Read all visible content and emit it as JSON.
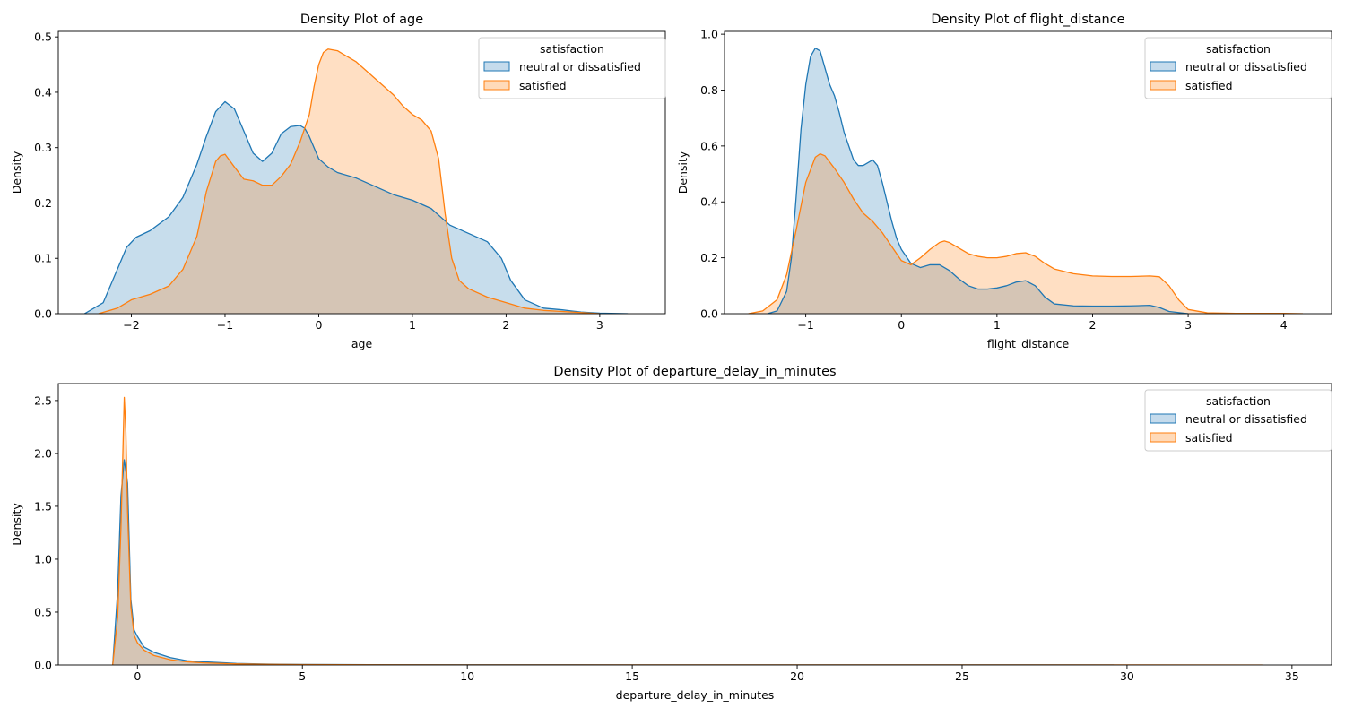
{
  "colors": {
    "series_line": [
      "#1f77b4",
      "#ff7f0e"
    ],
    "series_fill": [
      "#c5dbec",
      "#ffdab9"
    ],
    "overlap_fill": "#c4c4bd",
    "axes": "#000000",
    "background": "#ffffff"
  },
  "chart_data": [
    {
      "type": "area",
      "title": "Density Plot of age",
      "xlabel": "age",
      "ylabel": "Density",
      "xlim": [
        -2.78,
        3.7
      ],
      "ylim": [
        0,
        0.51
      ],
      "xticks": [
        -2,
        -1,
        0,
        1,
        2,
        3
      ],
      "xtick_labels": [
        "−2",
        "−1",
        "0",
        "1",
        "2",
        "3"
      ],
      "yticks": [
        0,
        0.1,
        0.2,
        0.3,
        0.4,
        0.5
      ],
      "ytick_labels": [
        "0.0",
        "0.1",
        "0.2",
        "0.3",
        "0.4",
        "0.5"
      ],
      "legend": {
        "title": "satisfaction",
        "location": "upper right"
      },
      "series": [
        {
          "name": "neutral or dissatisfied",
          "x": [
            -2.5,
            -2.3,
            -2.15,
            -2.05,
            -1.95,
            -1.8,
            -1.6,
            -1.45,
            -1.3,
            -1.2,
            -1.1,
            -1.0,
            -0.9,
            -0.8,
            -0.7,
            -0.6,
            -0.5,
            -0.4,
            -0.3,
            -0.2,
            -0.15,
            -0.1,
            -0.05,
            0.0,
            0.1,
            0.2,
            0.4,
            0.6,
            0.8,
            1.0,
            1.2,
            1.4,
            1.6,
            1.8,
            1.95,
            2.05,
            2.2,
            2.4,
            2.6,
            2.8,
            3.0,
            3.3
          ],
          "y": [
            0.0,
            0.02,
            0.08,
            0.12,
            0.138,
            0.15,
            0.175,
            0.21,
            0.27,
            0.32,
            0.365,
            0.383,
            0.37,
            0.33,
            0.29,
            0.275,
            0.29,
            0.325,
            0.338,
            0.34,
            0.335,
            0.32,
            0.3,
            0.28,
            0.265,
            0.255,
            0.245,
            0.23,
            0.215,
            0.205,
            0.19,
            0.16,
            0.145,
            0.13,
            0.1,
            0.06,
            0.025,
            0.01,
            0.007,
            0.003,
            0.001,
            0.0
          ]
        },
        {
          "name": "satisfied",
          "x": [
            -2.35,
            -2.15,
            -2.0,
            -1.8,
            -1.6,
            -1.45,
            -1.3,
            -1.2,
            -1.1,
            -1.05,
            -1.0,
            -0.9,
            -0.8,
            -0.7,
            -0.6,
            -0.5,
            -0.4,
            -0.3,
            -0.2,
            -0.1,
            -0.05,
            0.0,
            0.05,
            0.1,
            0.2,
            0.3,
            0.4,
            0.5,
            0.6,
            0.7,
            0.8,
            0.9,
            1.0,
            1.1,
            1.2,
            1.28,
            1.35,
            1.42,
            1.5,
            1.6,
            1.8,
            2.0,
            2.2,
            2.4,
            2.6,
            2.8,
            3.0
          ],
          "y": [
            0.0,
            0.01,
            0.025,
            0.035,
            0.05,
            0.08,
            0.14,
            0.22,
            0.275,
            0.285,
            0.288,
            0.265,
            0.243,
            0.24,
            0.232,
            0.232,
            0.248,
            0.27,
            0.31,
            0.36,
            0.41,
            0.45,
            0.472,
            0.478,
            0.475,
            0.465,
            0.455,
            0.44,
            0.425,
            0.41,
            0.395,
            0.375,
            0.36,
            0.35,
            0.33,
            0.28,
            0.18,
            0.1,
            0.06,
            0.045,
            0.03,
            0.02,
            0.01,
            0.006,
            0.004,
            0.002,
            0.0
          ]
        }
      ]
    },
    {
      "type": "area",
      "title": "Density Plot of flight_distance",
      "xlabel": "flight_distance",
      "ylabel": "Density",
      "xlim": [
        -1.85,
        4.5
      ],
      "ylim": [
        0,
        1.01
      ],
      "xticks": [
        -1,
        0,
        1,
        2,
        3,
        4
      ],
      "xtick_labels": [
        "−1",
        "0",
        "1",
        "2",
        "3",
        "4"
      ],
      "yticks": [
        0,
        0.2,
        0.4,
        0.6,
        0.8,
        1.0
      ],
      "ytick_labels": [
        "0.0",
        "0.2",
        "0.4",
        "0.6",
        "0.8",
        "1.0"
      ],
      "legend": {
        "title": "satisfaction",
        "location": "upper right"
      },
      "series": [
        {
          "name": "neutral or dissatisfied",
          "x": [
            -1.4,
            -1.3,
            -1.2,
            -1.15,
            -1.1,
            -1.05,
            -1.0,
            -0.95,
            -0.9,
            -0.85,
            -0.8,
            -0.75,
            -0.7,
            -0.65,
            -0.6,
            -0.55,
            -0.5,
            -0.45,
            -0.4,
            -0.3,
            -0.25,
            -0.2,
            -0.15,
            -0.1,
            -0.05,
            0.0,
            0.1,
            0.2,
            0.3,
            0.4,
            0.5,
            0.6,
            0.7,
            0.8,
            0.9,
            1.0,
            1.1,
            1.2,
            1.3,
            1.4,
            1.5,
            1.6,
            1.8,
            2.0,
            2.2,
            2.4,
            2.6,
            2.7,
            2.8,
            3.0
          ],
          "y": [
            0.0,
            0.01,
            0.08,
            0.2,
            0.42,
            0.66,
            0.82,
            0.92,
            0.95,
            0.94,
            0.88,
            0.82,
            0.78,
            0.72,
            0.65,
            0.6,
            0.55,
            0.53,
            0.53,
            0.55,
            0.53,
            0.47,
            0.4,
            0.33,
            0.27,
            0.23,
            0.18,
            0.165,
            0.175,
            0.175,
            0.155,
            0.125,
            0.1,
            0.088,
            0.088,
            0.092,
            0.1,
            0.113,
            0.118,
            0.1,
            0.06,
            0.035,
            0.028,
            0.027,
            0.027,
            0.028,
            0.03,
            0.022,
            0.008,
            0.0
          ]
        },
        {
          "name": "satisfied",
          "x": [
            -1.6,
            -1.45,
            -1.3,
            -1.2,
            -1.1,
            -1.0,
            -0.9,
            -0.85,
            -0.8,
            -0.7,
            -0.6,
            -0.5,
            -0.4,
            -0.3,
            -0.2,
            -0.1,
            0.0,
            0.1,
            0.2,
            0.3,
            0.4,
            0.45,
            0.5,
            0.6,
            0.7,
            0.8,
            0.9,
            1.0,
            1.1,
            1.2,
            1.3,
            1.4,
            1.5,
            1.6,
            1.8,
            2.0,
            2.2,
            2.4,
            2.6,
            2.7,
            2.8,
            2.9,
            3.0,
            3.2,
            3.5,
            4.0,
            4.2
          ],
          "y": [
            0.0,
            0.01,
            0.05,
            0.14,
            0.3,
            0.47,
            0.56,
            0.572,
            0.565,
            0.52,
            0.47,
            0.41,
            0.36,
            0.33,
            0.29,
            0.24,
            0.19,
            0.175,
            0.2,
            0.23,
            0.255,
            0.26,
            0.255,
            0.235,
            0.215,
            0.205,
            0.2,
            0.2,
            0.205,
            0.215,
            0.218,
            0.205,
            0.18,
            0.16,
            0.143,
            0.135,
            0.133,
            0.133,
            0.135,
            0.132,
            0.1,
            0.05,
            0.015,
            0.003,
            0.001,
            0.001,
            0.0
          ]
        }
      ]
    },
    {
      "type": "area",
      "title": "Density Plot of departure_delay_in_minutes",
      "xlabel": "departure_delay_in_minutes",
      "ylabel": "Density",
      "xlim": [
        -2.4,
        36.2
      ],
      "ylim": [
        0,
        2.66
      ],
      "xticks": [
        0,
        5,
        10,
        15,
        20,
        25,
        30,
        35
      ],
      "xtick_labels": [
        "0",
        "5",
        "10",
        "15",
        "20",
        "25",
        "30",
        "35"
      ],
      "yticks": [
        0,
        0.5,
        1.0,
        1.5,
        2.0,
        2.5
      ],
      "ytick_labels": [
        "0.0",
        "0.5",
        "1.0",
        "1.5",
        "2.0",
        "2.5"
      ],
      "legend": {
        "title": "satisfaction",
        "location": "upper right"
      },
      "series": [
        {
          "name": "neutral or dissatisfied",
          "x": [
            -0.75,
            -0.6,
            -0.5,
            -0.4,
            -0.3,
            -0.2,
            -0.1,
            0.0,
            0.2,
            0.5,
            1.0,
            1.5,
            2.0,
            3.0,
            4.0,
            5.0,
            7.0,
            10.0,
            15.0,
            20.0,
            25.0,
            29.6
          ],
          "y": [
            0.0,
            0.7,
            1.6,
            1.94,
            1.72,
            0.62,
            0.33,
            0.27,
            0.17,
            0.12,
            0.07,
            0.04,
            0.03,
            0.015,
            0.008,
            0.005,
            0.003,
            0.002,
            0.001,
            0.001,
            0.001,
            0.0
          ]
        },
        {
          "name": "satisfied",
          "x": [
            -0.75,
            -0.6,
            -0.5,
            -0.4,
            -0.35,
            -0.3,
            -0.2,
            -0.1,
            0.0,
            0.2,
            0.5,
            1.0,
            1.5,
            2.0,
            3.0,
            4.0,
            5.0,
            7.0,
            10.0,
            15.0,
            20.0,
            25.0,
            30.0,
            34.1
          ],
          "y": [
            0.0,
            0.45,
            1.3,
            2.53,
            2.2,
            1.45,
            0.55,
            0.28,
            0.21,
            0.14,
            0.09,
            0.05,
            0.03,
            0.02,
            0.01,
            0.006,
            0.004,
            0.002,
            0.001,
            0.001,
            0.001,
            0.001,
            0.001,
            0.0
          ]
        }
      ]
    }
  ]
}
